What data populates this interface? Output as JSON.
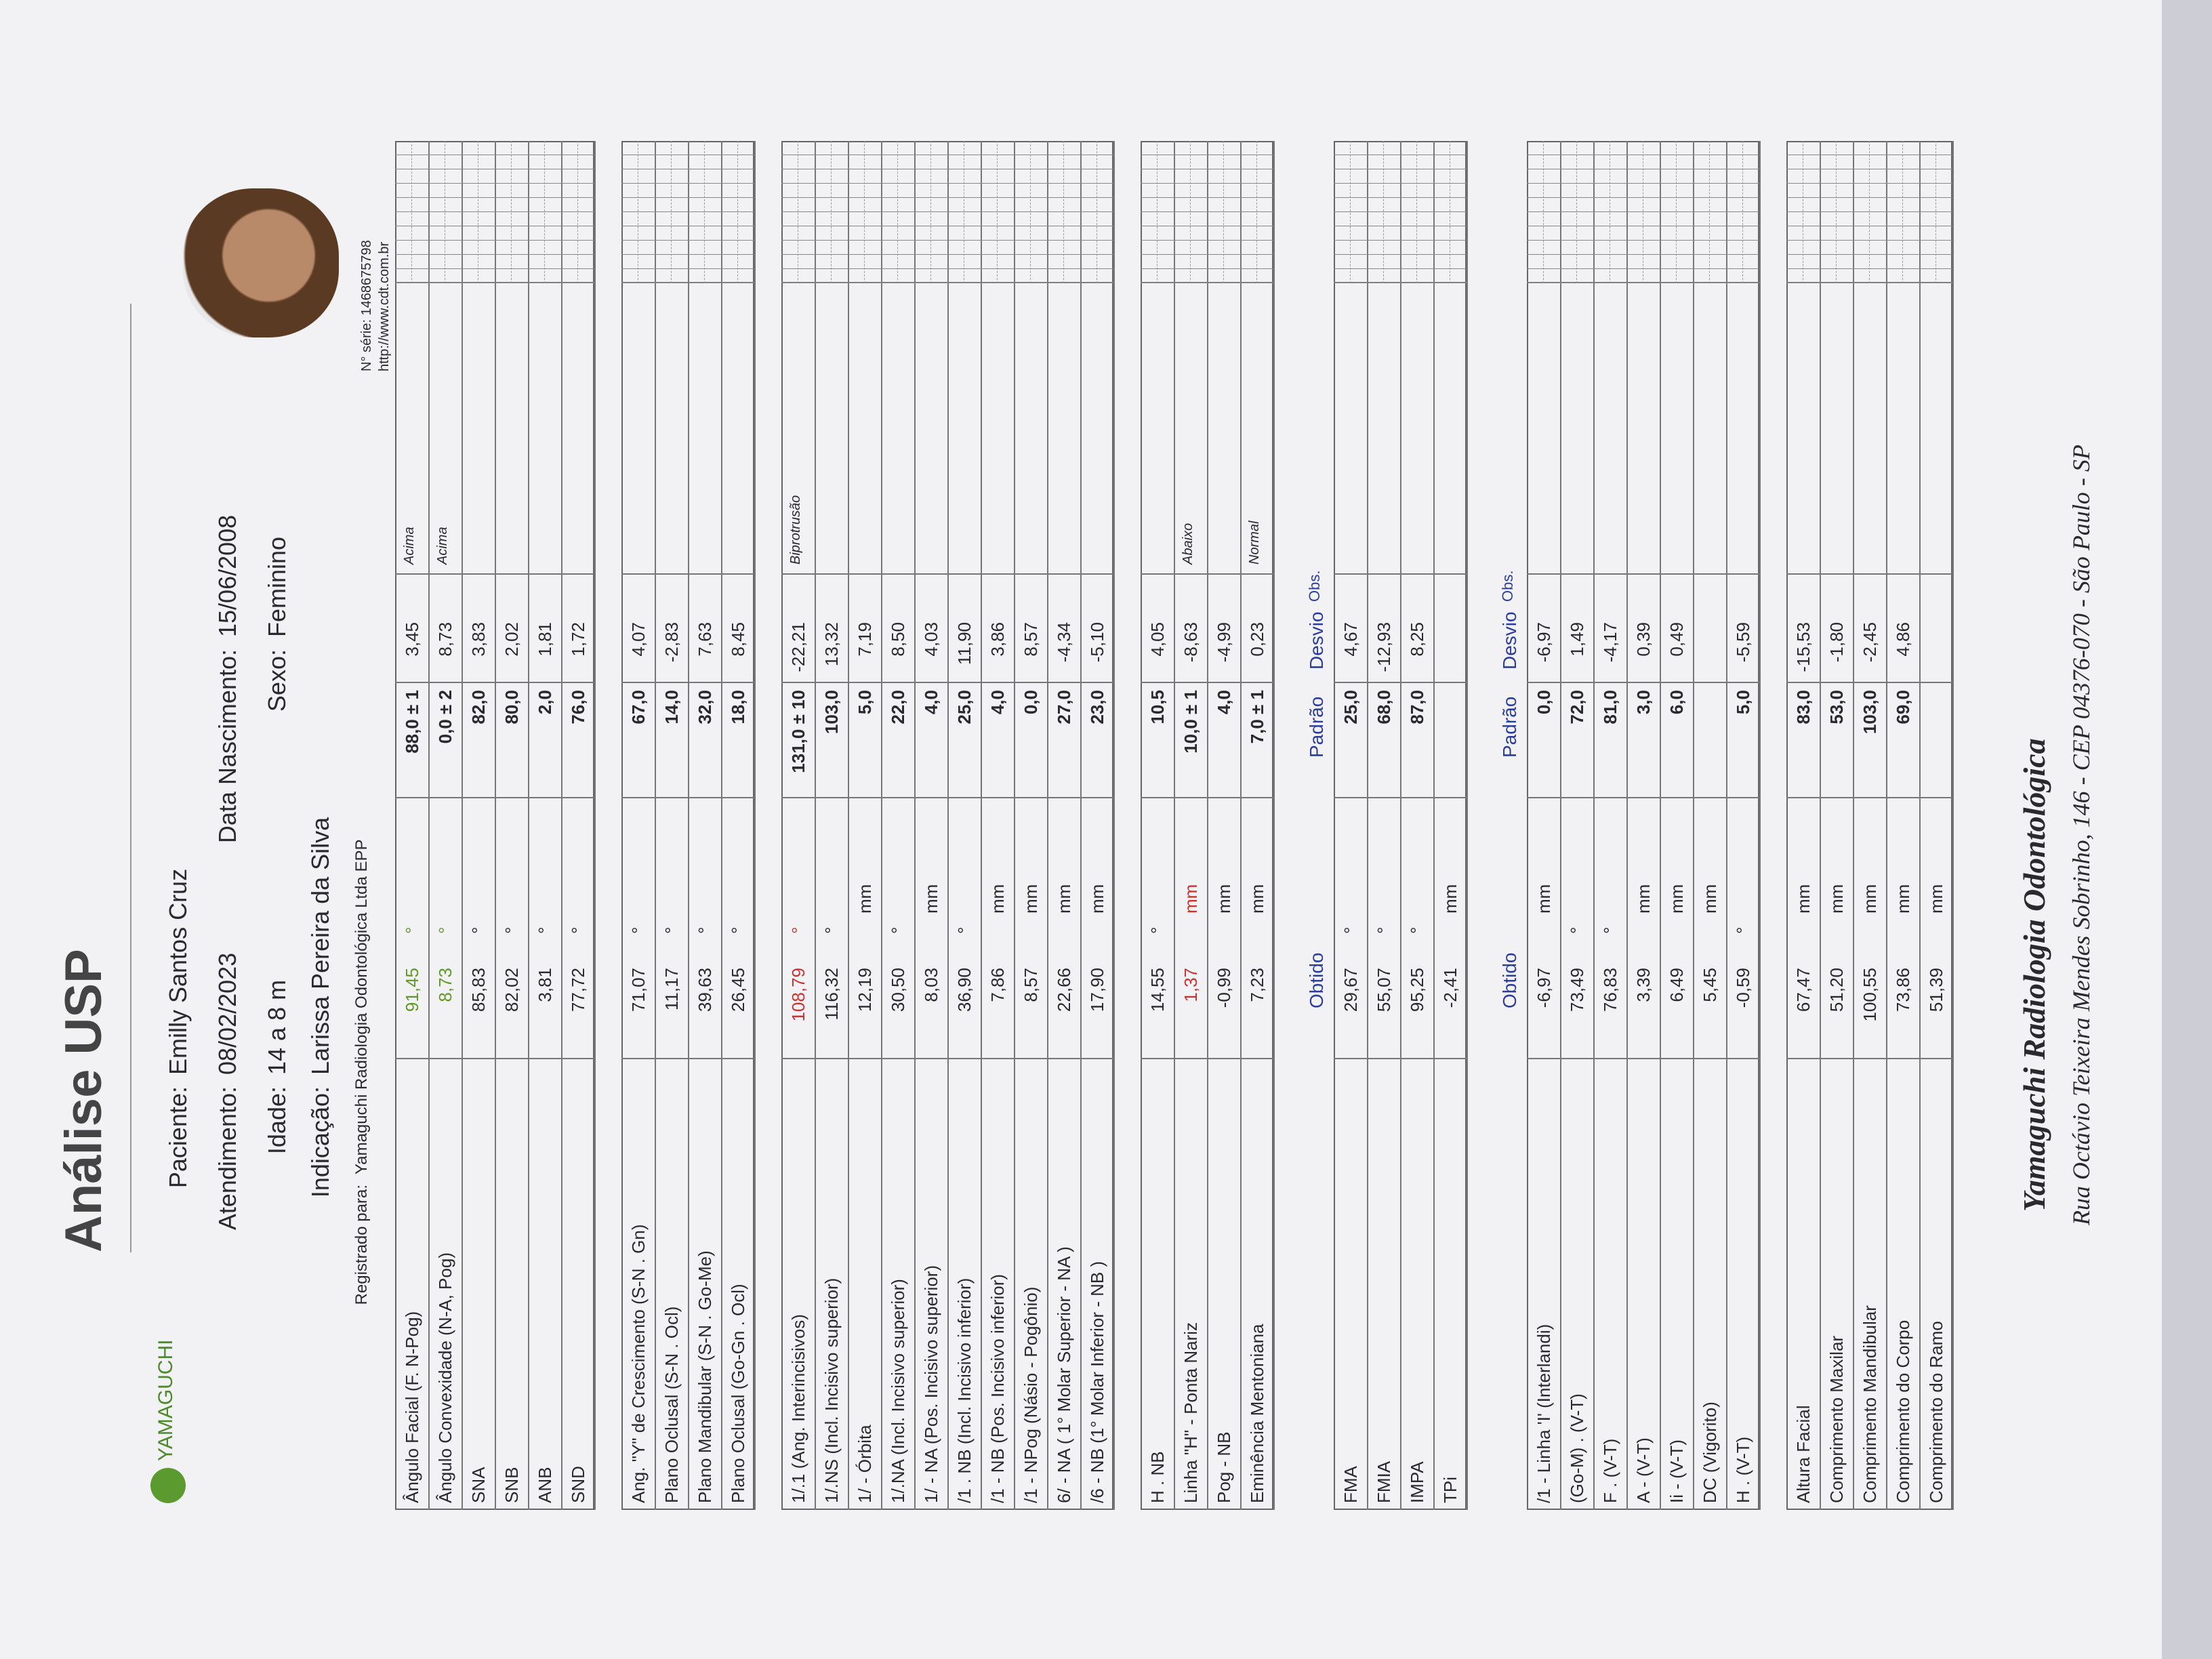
{
  "header": {
    "title": "Análise USP",
    "logo": "YAMAGUCHI",
    "fields": [
      {
        "label": "Paciente:",
        "value": "Emilly Santos Cruz"
      },
      {
        "label": "Atendimento:",
        "value": "08/02/2023"
      },
      {
        "label": "Data Nascimento:",
        "value": "15/06/2008"
      },
      {
        "label": "Idade:",
        "value": "14 a 8 m"
      },
      {
        "label": "Sexo:",
        "value": "Feminino"
      },
      {
        "label": "Indicação:",
        "value": "Larissa Pereira da Silva"
      },
      {
        "label": "Registrado para:",
        "value": "Yamaguchi Radiologia Odontológica Ltda EPP"
      }
    ],
    "serial": "N° série: 1468675798",
    "url": "http://www.cdt.com.br"
  },
  "sections": [
    {
      "rows": [
        {
          "name": "Ângulo Facial  (F. N-Pog)",
          "obtained": "91,45",
          "unit": "°",
          "standard": "88,0 ± 1",
          "deviation": "3,45",
          "obs": "Acima",
          "color": "#5f9a23"
        },
        {
          "name": "Ângulo Convexidade  (N-A, Pog)",
          "obtained": "8,73",
          "unit": "°",
          "standard": "0,0 ± 2",
          "deviation": "8,73",
          "obs": "Acima",
          "color": "#5f9a23"
        },
        {
          "name": "SNA",
          "obtained": "85,83",
          "unit": "°",
          "standard": "82,0",
          "deviation": "3,83"
        },
        {
          "name": "SNB",
          "obtained": "82,02",
          "unit": "°",
          "standard": "80,0",
          "deviation": "2,02"
        },
        {
          "name": "ANB",
          "obtained": "3,81",
          "unit": "°",
          "standard": "2,0",
          "deviation": "1,81"
        },
        {
          "name": "SND",
          "obtained": "77,72",
          "unit": "°",
          "standard": "76,0",
          "deviation": "1,72"
        }
      ]
    },
    {
      "rows": [
        {
          "name": "Ang. \"Y\" de Crescimento  (S-N . Gn)",
          "obtained": "71,07",
          "unit": "°",
          "standard": "67,0",
          "deviation": "4,07"
        },
        {
          "name": "Plano Oclusal  (S-N . Ocl)",
          "obtained": "11,17",
          "unit": "°",
          "standard": "14,0",
          "deviation": "-2,83"
        },
        {
          "name": "Plano Mandibular  (S-N . Go-Me)",
          "obtained": "39,63",
          "unit": "°",
          "standard": "32,0",
          "deviation": "7,63"
        },
        {
          "name": "Plano Oclusal  (Go-Gn . Ocl)",
          "obtained": "26,45",
          "unit": "°",
          "standard": "18,0",
          "deviation": "8,45"
        }
      ]
    },
    {
      "rows": [
        {
          "name": "1/.1 (Ang. Interincisivos)",
          "obtained": "108,79",
          "unit": "°",
          "standard": "131,0 ± 10",
          "deviation": "-22,21",
          "obs": "Biprotrusão",
          "color": "#c8322f"
        },
        {
          "name": "1/.NS (Incl. Incisivo superior)",
          "obtained": "116,32",
          "unit": "°",
          "standard": "103,0",
          "deviation": "13,32"
        },
        {
          "name": "1/ - Órbita",
          "obtained": "12,19",
          "unit": "mm",
          "standard": "5,0",
          "deviation": "7,19"
        },
        {
          "name": "1/.NA (Incl. Incisivo superior)",
          "obtained": "30,50",
          "unit": "°",
          "standard": "22,0",
          "deviation": "8,50"
        },
        {
          "name": "1/ - NA (Pos. Incisivo superior)",
          "obtained": "8,03",
          "unit": "mm",
          "standard": "4,0",
          "deviation": "4,03"
        },
        {
          "name": "/1 . NB (Incl. Incisivo inferior)",
          "obtained": "36,90",
          "unit": "°",
          "standard": "25,0",
          "deviation": "11,90"
        },
        {
          "name": "/1 - NB (Pos. Incisivo inferior)",
          "obtained": "7,86",
          "unit": "mm",
          "standard": "4,0",
          "deviation": "3,86"
        },
        {
          "name": "/1 - NPog (Násio - Pogônio)",
          "obtained": "8,57",
          "unit": "mm",
          "standard": "0,0",
          "deviation": "8,57"
        },
        {
          "name": "6/ - NA ( 1° Molar Superior - NA )",
          "obtained": "22,66",
          "unit": "mm",
          "standard": "27,0",
          "deviation": "-4,34"
        },
        {
          "name": "/6 - NB (1° Molar Inferior - NB )",
          "obtained": "17,90",
          "unit": "mm",
          "standard": "23,0",
          "deviation": "-5,10"
        }
      ]
    },
    {
      "rows": [
        {
          "name": "H . NB",
          "obtained": "14,55",
          "unit": "°",
          "standard": "10,5",
          "deviation": "4,05"
        },
        {
          "name": "Linha \"H\" - Ponta Nariz",
          "obtained": "1,37",
          "unit": "mm",
          "standard": "10,0 ± 1",
          "deviation": "-8,63",
          "obs": "Abaixo",
          "color": "#c8322f"
        },
        {
          "name": "Pog - NB",
          "obtained": "-0,99",
          "unit": "mm",
          "standard": "4,0",
          "deviation": "-4,99"
        },
        {
          "name": "Eminência Mentoniana",
          "obtained": "7,23",
          "unit": "mm",
          "standard": "7,0 ± 1",
          "deviation": "0,23",
          "obs": "Normal"
        }
      ]
    },
    {
      "columns": {
        "obtained": "Obtido",
        "standard": "Padrão",
        "deviation": "Desvio",
        "obs": "Obs."
      },
      "rows": [
        {
          "name": "FMA",
          "obtained": "29,67",
          "unit": "°",
          "standard": "25,0",
          "deviation": "4,67"
        },
        {
          "name": "FMIA",
          "obtained": "55,07",
          "unit": "°",
          "standard": "68,0",
          "deviation": "-12,93"
        },
        {
          "name": "IMPA",
          "obtained": "95,25",
          "unit": "°",
          "standard": "87,0",
          "deviation": "8,25"
        },
        {
          "name": "TPi",
          "obtained": "-2,41",
          "unit": "mm"
        }
      ]
    },
    {
      "columns": {
        "obtained": "Obtido",
        "standard": "Padrão",
        "deviation": "Desvio",
        "obs": "Obs."
      },
      "rows": [
        {
          "name": "/1 - Linha 'I' (Interlandi)",
          "obtained": "-6,97",
          "unit": "mm",
          "standard": "0,0",
          "deviation": "-6,97"
        },
        {
          "name": "(Go-M) . (V-T)",
          "obtained": "73,49",
          "unit": "°",
          "standard": "72,0",
          "deviation": "1,49"
        },
        {
          "name": "F . (V-T)",
          "obtained": "76,83",
          "unit": "°",
          "standard": "81,0",
          "deviation": "-4,17"
        },
        {
          "name": "A - (V-T)",
          "obtained": "3,39",
          "unit": "mm",
          "standard": "3,0",
          "deviation": "0,39"
        },
        {
          "name": "Ii - (V-T)",
          "obtained": "6,49",
          "unit": "mm",
          "standard": "6,0",
          "deviation": "0,49"
        },
        {
          "name": "DC (Vigorito)",
          "obtained": "5,45",
          "unit": "mm"
        },
        {
          "name": "H . (V-T)",
          "obtained": "-0,59",
          "unit": "°",
          "standard": "5,0",
          "deviation": "-5,59"
        }
      ]
    },
    {
      "rows": [
        {
          "name": "Altura Facial",
          "obtained": "67,47",
          "unit": "mm",
          "standard": "83,0",
          "deviation": "-15,53"
        },
        {
          "name": "Comprimento Maxilar",
          "obtained": "51,20",
          "unit": "mm",
          "standard": "53,0",
          "deviation": "-1,80"
        },
        {
          "name": "Comprimento Mandibular",
          "obtained": "100,55",
          "unit": "mm",
          "standard": "103,0",
          "deviation": "-2,45"
        },
        {
          "name": "Comprimento do Corpo",
          "obtained": "73,86",
          "unit": "mm",
          "standard": "69,0",
          "deviation": "4,86"
        },
        {
          "name": "Comprimento do Ramo",
          "obtained": "51,39",
          "unit": "mm"
        }
      ]
    }
  ],
  "footer": {
    "company": "Yamaguchi Radiologia Odontológica",
    "address": "Rua Octávio Teixeira Mendes Sobrinho, 146 - CEP 04376-070 - São Paulo - SP"
  }
}
